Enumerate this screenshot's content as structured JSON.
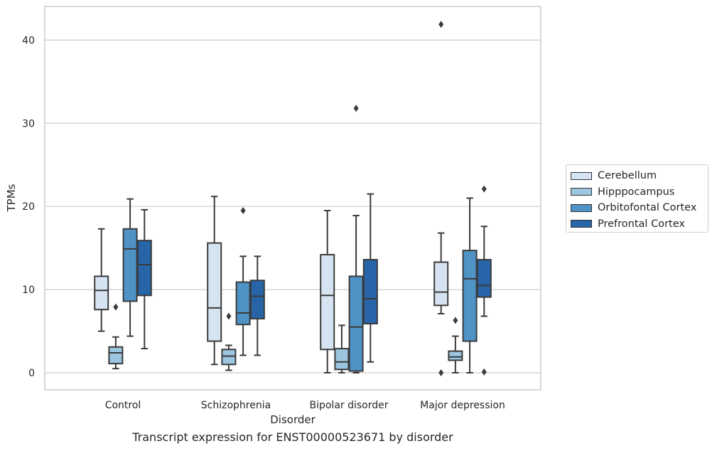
{
  "chart_data": {
    "type": "boxplot",
    "caption": "Transcript expression for ENST00000523671 by disorder",
    "xlabel": "Disorder",
    "ylabel": "TPMs",
    "ylim": [
      -2,
      44
    ],
    "yticks": [
      0,
      10,
      20,
      30,
      40
    ],
    "grid": "horizontal",
    "legend_position": "right",
    "categories": [
      "Control",
      "Schizophrenia",
      "Bipolar disorder",
      "Major depression"
    ],
    "series": [
      {
        "name": "Cerebellum",
        "color": "#d6e4f2",
        "boxes": [
          {
            "whisker_low": 5.0,
            "q1": 7.6,
            "median": 9.9,
            "q3": 11.6,
            "whisker_high": 17.3,
            "outliers": []
          },
          {
            "whisker_low": 1.0,
            "q1": 3.8,
            "median": 7.8,
            "q3": 15.6,
            "whisker_high": 21.2,
            "outliers": []
          },
          {
            "whisker_low": 0.0,
            "q1": 2.8,
            "median": 9.3,
            "q3": 14.2,
            "whisker_high": 19.5,
            "outliers": []
          },
          {
            "whisker_low": 7.1,
            "q1": 8.1,
            "median": 9.7,
            "q3": 13.3,
            "whisker_high": 16.8,
            "outliers": [
              0.0,
              41.9
            ]
          }
        ]
      },
      {
        "name": "Hipppocampus",
        "color": "#9cc5e0",
        "boxes": [
          {
            "whisker_low": 0.5,
            "q1": 1.1,
            "median": 2.4,
            "q3": 3.1,
            "whisker_high": 4.3,
            "outliers": [
              7.9
            ]
          },
          {
            "whisker_low": 0.3,
            "q1": 1.0,
            "median": 2.0,
            "q3": 2.8,
            "whisker_high": 3.3,
            "outliers": [
              6.8
            ]
          },
          {
            "whisker_low": 0.0,
            "q1": 0.4,
            "median": 1.3,
            "q3": 2.9,
            "whisker_high": 5.7,
            "outliers": []
          },
          {
            "whisker_low": 0.0,
            "q1": 1.5,
            "median": 1.9,
            "q3": 2.6,
            "whisker_high": 4.4,
            "outliers": [
              6.3
            ]
          }
        ]
      },
      {
        "name": "Orbitofontal Cortex",
        "color": "#4f92c5",
        "boxes": [
          {
            "whisker_low": 4.4,
            "q1": 8.6,
            "median": 14.9,
            "q3": 17.3,
            "whisker_high": 20.9,
            "outliers": []
          },
          {
            "whisker_low": 2.1,
            "q1": 5.8,
            "median": 7.2,
            "q3": 10.9,
            "whisker_high": 14.0,
            "outliers": [
              19.5
            ]
          },
          {
            "whisker_low": 0.0,
            "q1": 0.2,
            "median": 5.5,
            "q3": 11.6,
            "whisker_high": 18.9,
            "outliers": [
              31.8
            ]
          },
          {
            "whisker_low": 0.0,
            "q1": 3.8,
            "median": 11.3,
            "q3": 14.7,
            "whisker_high": 21.0,
            "outliers": []
          }
        ]
      },
      {
        "name": "Prefrontal Cortex",
        "color": "#2765a8",
        "boxes": [
          {
            "whisker_low": 2.9,
            "q1": 9.3,
            "median": 13.0,
            "q3": 15.9,
            "whisker_high": 19.6,
            "outliers": []
          },
          {
            "whisker_low": 2.1,
            "q1": 6.5,
            "median": 9.2,
            "q3": 11.1,
            "whisker_high": 14.0,
            "outliers": []
          },
          {
            "whisker_low": 1.3,
            "q1": 5.9,
            "median": 8.9,
            "q3": 13.6,
            "whisker_high": 21.5,
            "outliers": []
          },
          {
            "whisker_low": 6.8,
            "q1": 9.1,
            "median": 10.5,
            "q3": 13.6,
            "whisker_high": 17.6,
            "outliers": [
              0.1,
              22.1
            ]
          }
        ]
      }
    ]
  }
}
